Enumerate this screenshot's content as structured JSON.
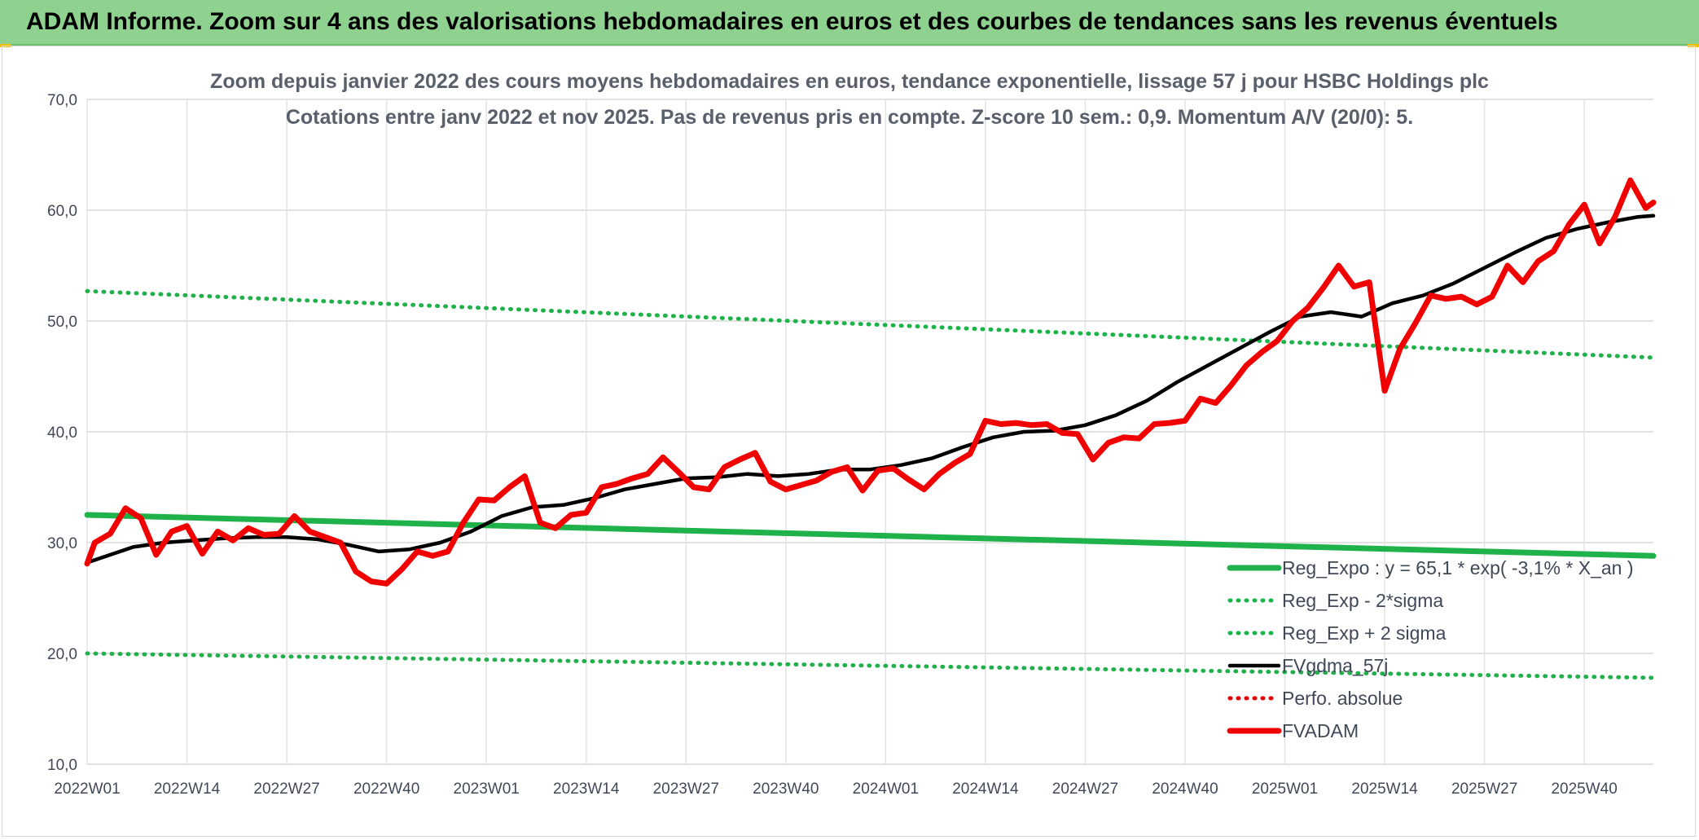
{
  "banner": {
    "title": "ADAM Informe. Zoom sur 4 ans des valorisations hebdomadaires en euros et des courbes de tendances sans les revenus éventuels"
  },
  "chart_data": {
    "type": "line",
    "title": "Zoom depuis janvier 2022 des cours moyens hebdomadaires en euros, tendance exponentielle, lissage 57 j pour HSBC Holdings plc",
    "subtitle": "Cotations entre janv 2022 et nov 2025. Pas de revenus pris en compte. Z-score 10 sem.: 0,9. Momentum A/V (20/0): 5.",
    "ylim": [
      10,
      70
    ],
    "yticks": [
      "10,0",
      "20,0",
      "30,0",
      "40,0",
      "50,0",
      "60,0",
      "70,0"
    ],
    "xticks": [
      "2022W01",
      "2022W14",
      "2022W27",
      "2022W40",
      "2023W01",
      "2023W14",
      "2023W27",
      "2023W40",
      "2024W01",
      "2024W14",
      "2024W27",
      "2024W40",
      "2025W01",
      "2025W14",
      "2025W27",
      "2025W40"
    ],
    "x_range": [
      0,
      204
    ],
    "grid": true,
    "legend_position": "bottom-right",
    "series": [
      {
        "name": "Reg_Expo : y = 65,1 * exp( -3,1% *  X_an )",
        "color": "#1fb24a",
        "style": "thick",
        "x": [
          0,
          204
        ],
        "values": [
          32.5,
          28.8
        ]
      },
      {
        "name": "Reg_Exp - 2*sigma",
        "color": "#1fb24a",
        "style": "dotted",
        "x": [
          0,
          204
        ],
        "values": [
          20.0,
          17.8
        ]
      },
      {
        "name": "Reg_Exp + 2 sigma",
        "color": "#1fb24a",
        "style": "dotted",
        "x": [
          0,
          204
        ],
        "values": [
          52.7,
          46.7
        ]
      },
      {
        "name": "FVgdma_57j",
        "color": "#000000",
        "style": "solid",
        "x": [
          0,
          6,
          10,
          14,
          18,
          22,
          26,
          30,
          34,
          38,
          42,
          46,
          50,
          54,
          58,
          62,
          66,
          70,
          74,
          78,
          82,
          86,
          90,
          94,
          98,
          102,
          106,
          110,
          114,
          118,
          122,
          126,
          130,
          134,
          138,
          142,
          146,
          150,
          154,
          158,
          162,
          166,
          170,
          174,
          178,
          182,
          186,
          190,
          194,
          198,
          202,
          204
        ],
        "values": [
          28.2,
          29.6,
          30.0,
          30.2,
          30.4,
          30.5,
          30.5,
          30.3,
          29.8,
          29.2,
          29.4,
          30.0,
          31.0,
          32.4,
          33.2,
          33.4,
          34.0,
          34.8,
          35.3,
          35.8,
          35.9,
          36.2,
          36.0,
          36.2,
          36.6,
          36.6,
          37.0,
          37.6,
          38.6,
          39.5,
          40.0,
          40.1,
          40.6,
          41.5,
          42.8,
          44.5,
          46.0,
          47.5,
          49.0,
          50.4,
          50.8,
          50.4,
          51.6,
          52.3,
          53.4,
          54.8,
          56.2,
          57.5,
          58.3,
          58.9,
          59.4,
          59.5
        ]
      },
      {
        "name": "Perfo. absolue",
        "color": "#e00000",
        "style": "dotted",
        "x": [],
        "values": []
      },
      {
        "name": "FVADAM",
        "color": "#f00000",
        "style": "thick",
        "x": [
          0,
          1,
          3,
          5,
          7,
          9,
          11,
          13,
          15,
          17,
          19,
          21,
          23,
          25,
          27,
          29,
          31,
          33,
          35,
          37,
          39,
          41,
          43,
          45,
          47,
          49,
          51,
          53,
          55,
          57,
          59,
          61,
          63,
          65,
          67,
          69,
          71,
          73,
          75,
          77,
          79,
          81,
          83,
          85,
          87,
          89,
          91,
          93,
          95,
          97,
          99,
          101,
          103,
          105,
          107,
          109,
          111,
          113,
          115,
          117,
          119,
          121,
          123,
          125,
          127,
          129,
          131,
          133,
          135,
          137,
          139,
          141,
          143,
          145,
          147,
          149,
          151,
          153,
          155,
          157,
          159,
          161,
          163,
          165,
          167,
          169,
          171,
          173,
          175,
          177,
          179,
          181,
          183,
          185,
          187,
          189,
          191,
          193,
          195,
          197,
          199,
          201,
          203,
          204
        ],
        "values": [
          28.1,
          30.0,
          30.8,
          33.1,
          32.2,
          28.9,
          31.0,
          31.5,
          29.0,
          31.0,
          30.2,
          31.3,
          30.7,
          30.8,
          32.4,
          31.0,
          30.5,
          30.0,
          27.4,
          26.5,
          26.3,
          27.6,
          29.2,
          28.8,
          29.2,
          31.8,
          33.9,
          33.8,
          35.0,
          36.0,
          31.8,
          31.3,
          32.5,
          32.7,
          35.0,
          35.3,
          35.8,
          36.2,
          37.7,
          36.4,
          35.0,
          34.8,
          36.8,
          37.5,
          38.1,
          35.5,
          34.8,
          35.2,
          35.6,
          36.4,
          36.8,
          34.7,
          36.5,
          36.7,
          35.7,
          34.8,
          36.2,
          37.2,
          38.0,
          41.0,
          40.7,
          40.8,
          40.6,
          40.7,
          39.9,
          39.8,
          37.5,
          39.0,
          39.5,
          39.4,
          40.7,
          40.8,
          41.0,
          43.0,
          42.6,
          44.2,
          46.0,
          47.2,
          48.2,
          50.0,
          51.2,
          53.0,
          55.0,
          53.1,
          53.5,
          43.7,
          47.5,
          49.8,
          52.3,
          52.0,
          52.2,
          51.5,
          52.2,
          55.0,
          53.5,
          55.4,
          56.3,
          58.7,
          60.5,
          57.0,
          59.4,
          62.7,
          60.2,
          60.7
        ]
      }
    ]
  }
}
